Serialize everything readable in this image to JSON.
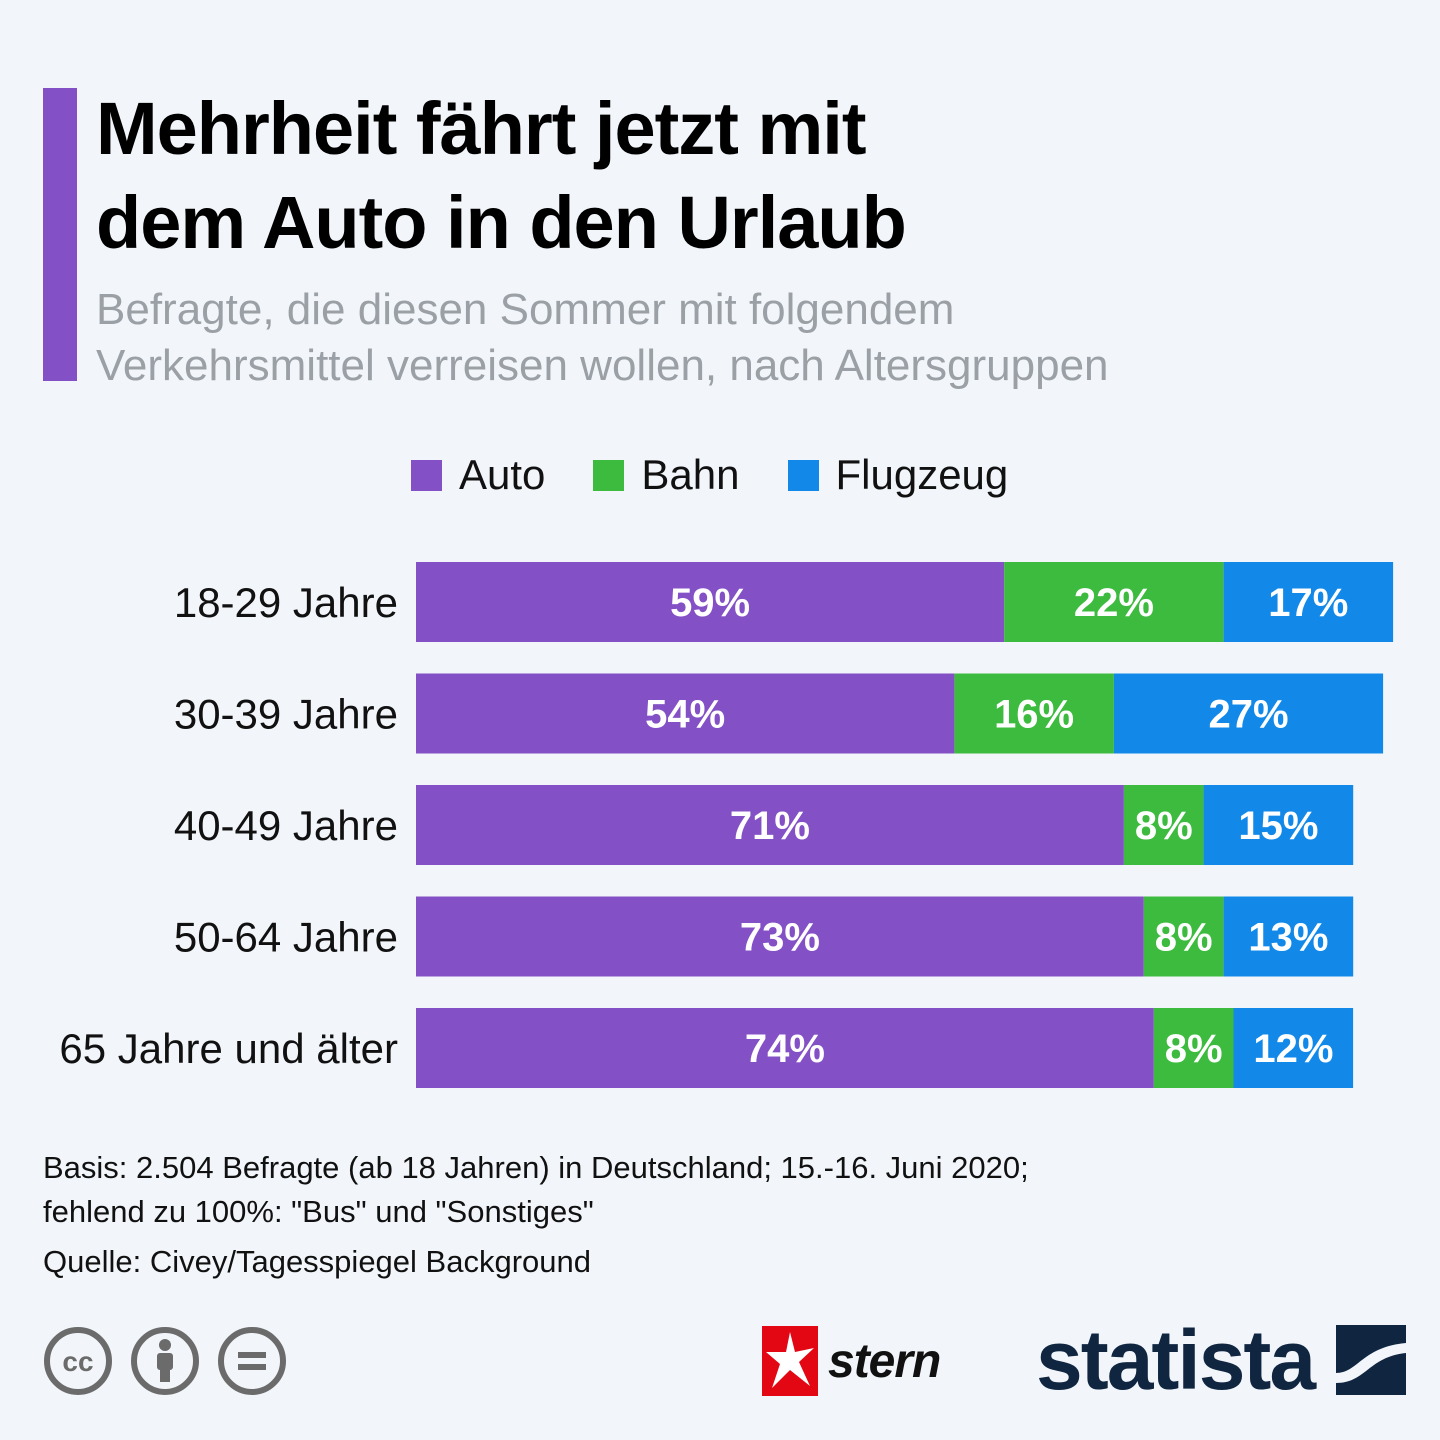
{
  "header": {
    "title_line1": "Mehrheit fährt jetzt mit",
    "title_line2": "dem Auto in den Urlaub",
    "subtitle_line1": "Befragte, die diesen Sommer mit folgendem",
    "subtitle_line2": "Verkehrsmittel verreisen wollen, nach Altersgruppen",
    "accent_color": "#8450c6"
  },
  "chart_data": {
    "type": "bar",
    "orientation": "horizontal",
    "stacked": true,
    "title": "Mehrheit fährt jetzt mit dem Auto in den Urlaub",
    "categories": [
      "18-29 Jahre",
      "30-39 Jahre",
      "40-49 Jahre",
      "50-64 Jahre",
      "65 Jahre und älter"
    ],
    "series": [
      {
        "name": "Auto",
        "color": "#8450c6",
        "values": [
          59,
          54,
          71,
          73,
          74
        ]
      },
      {
        "name": "Bahn",
        "color": "#3dbb3f",
        "values": [
          22,
          16,
          8,
          8,
          8
        ]
      },
      {
        "name": "Flugzeug",
        "color": "#1289e8",
        "values": [
          17,
          27,
          15,
          13,
          12
        ]
      }
    ],
    "value_suffix": "%",
    "xlim": [
      0,
      100
    ],
    "legend_position": "top",
    "grid": false
  },
  "footer": {
    "basis_line1": "Basis: 2.504 Befragte (ab 18 Jahren) in Deutschland; 15.-16. Juni 2020;",
    "basis_line2": "fehlend zu 100%: \"Bus\" und \"Sonstiges\"",
    "source": "Quelle: Civey/Tagesspiegel Background",
    "license_icons": [
      "cc-icon",
      "attribution-icon",
      "no-derivatives-icon"
    ],
    "stern_label": "stern",
    "statista_label": "statista"
  }
}
